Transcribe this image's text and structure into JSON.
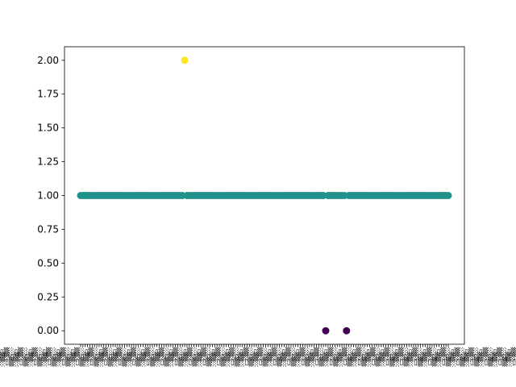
{
  "chart_data": {
    "type": "scatter",
    "title": "",
    "xlabel": "",
    "ylabel": "",
    "y_ticks": [
      "0.00",
      "0.25",
      "0.50",
      "0.75",
      "1.00",
      "1.25",
      "1.50",
      "1.75",
      "2.00"
    ],
    "ylim": [
      -0.1,
      2.1
    ],
    "grid": false,
    "legend": "none",
    "n_categories": 160,
    "x_tick_labels_legible": false,
    "color_by_value": {
      "0": "#440154",
      "1": "#21918c",
      "2": "#fde725"
    },
    "default_y": 1,
    "exceptions": [
      {
        "index": 45,
        "y": 2
      },
      {
        "index": 106,
        "y": 0
      },
      {
        "index": 115,
        "y": 0
      }
    ]
  }
}
